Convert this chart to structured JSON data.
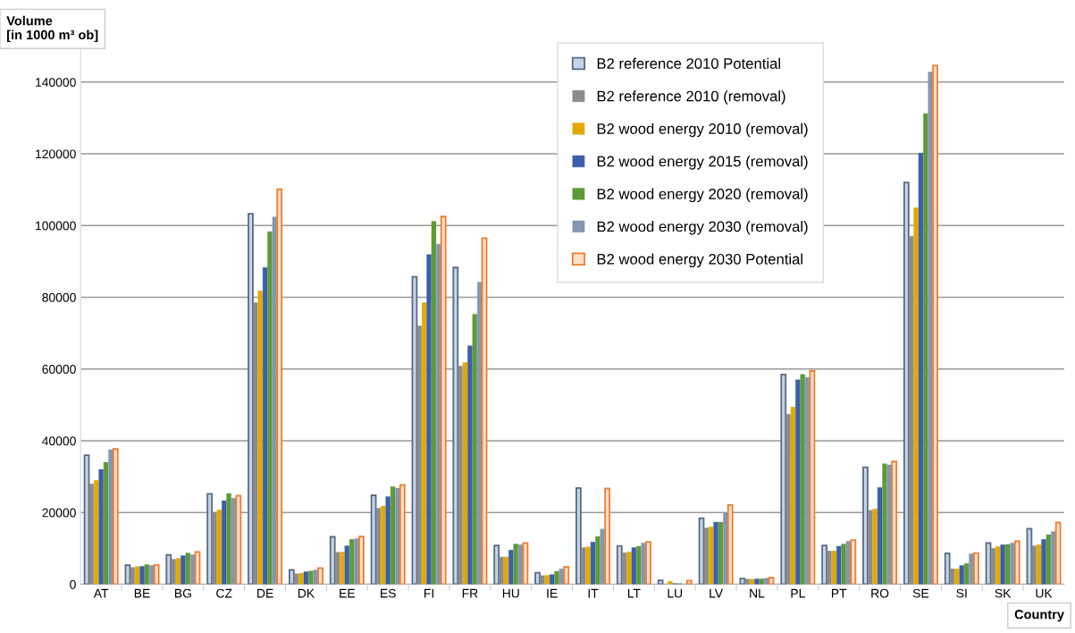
{
  "chart_data": {
    "type": "bar",
    "ylabel": "Volume\n[in 1000 m³ ob]",
    "xlabel": "Country",
    "categories": [
      "AT",
      "BE",
      "BG",
      "CZ",
      "DE",
      "DK",
      "EE",
      "ES",
      "FI",
      "FR",
      "HU",
      "IE",
      "IT",
      "LT",
      "LU",
      "LV",
      "NL",
      "PL",
      "PT",
      "RO",
      "SE",
      "SI",
      "SK",
      "UK"
    ],
    "series": [
      {
        "name": "B2 reference 2010 Potential",
        "color": "#c5d5ea",
        "values": [
          36000,
          5300,
          8200,
          25200,
          103300,
          4000,
          13200,
          24800,
          85700,
          88300,
          10800,
          3200,
          26800,
          10700,
          1100,
          18400,
          1600,
          58500,
          10800,
          32600,
          112000,
          8600,
          11500,
          15500
        ]
      },
      {
        "name": "B2 reference 2010 (removal)",
        "color": "#8c8c8c",
        "values": [
          28000,
          4700,
          7000,
          20000,
          78500,
          2900,
          8900,
          21200,
          72000,
          60800,
          7600,
          2400,
          10200,
          8800,
          null,
          15700,
          1400,
          47400,
          9300,
          20600,
          97000,
          4300,
          10000,
          10700
        ]
      },
      {
        "name": "B2 wood energy 2010 (removal)",
        "color": "#e2aa00",
        "values": [
          29000,
          4900,
          7200,
          20700,
          81800,
          3100,
          9000,
          21800,
          78500,
          61800,
          7600,
          2500,
          10400,
          9000,
          800,
          16000,
          1400,
          49400,
          9300,
          21000,
          105000,
          4300,
          10500,
          11000
        ]
      },
      {
        "name": "B2 wood energy 2015 (removal)",
        "color": "#3a5fad",
        "values": [
          32000,
          5000,
          8000,
          23300,
          88300,
          3500,
          10700,
          24400,
          91900,
          66500,
          9500,
          2700,
          11800,
          10200,
          200,
          17300,
          1500,
          57000,
          10600,
          27000,
          120200,
          5200,
          11000,
          12500
        ]
      },
      {
        "name": "B2 wood energy 2020 (removal)",
        "color": "#5f9a3a",
        "values": [
          34000,
          5500,
          8700,
          25300,
          98300,
          3700,
          12500,
          27200,
          101200,
          75300,
          11200,
          3600,
          13300,
          10600,
          200,
          17300,
          1500,
          58500,
          11200,
          33600,
          131200,
          5800,
          11100,
          13800
        ]
      },
      {
        "name": "B2 wood energy 2030 (removal)",
        "color": "#8497b0",
        "values": [
          37500,
          5200,
          8200,
          24000,
          102400,
          4000,
          12700,
          26800,
          94800,
          84200,
          11000,
          4300,
          15400,
          11500,
          null,
          20000,
          1700,
          57700,
          12000,
          33300,
          142800,
          8500,
          11500,
          14700
        ]
      },
      {
        "name": "B2 wood energy 2030 Potential",
        "color": "#fbe0cc",
        "values": [
          37700,
          5400,
          9000,
          24700,
          110100,
          4500,
          13300,
          27700,
          102500,
          96500,
          11500,
          4800,
          26700,
          11800,
          1000,
          22100,
          1800,
          59500,
          12300,
          34200,
          144600,
          8700,
          12000,
          17200
        ]
      }
    ],
    "ylim": [
      0,
      150000
    ],
    "yticks": [
      0,
      20000,
      40000,
      60000,
      80000,
      100000,
      120000,
      140000
    ],
    "grid": "y",
    "legend": "top"
  }
}
